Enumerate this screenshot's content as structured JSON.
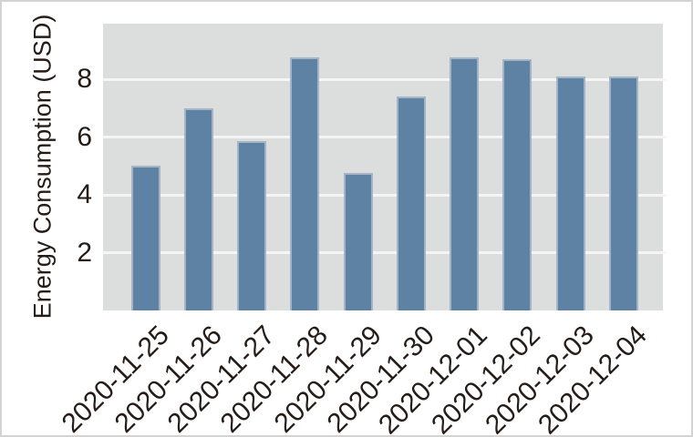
{
  "chart_data": {
    "type": "bar",
    "title": "",
    "xlabel": "",
    "ylabel": "Energy Consumption (USD)",
    "categories": [
      "2020-11-25",
      "2020-11-26",
      "2020-11-27",
      "2020-11-28",
      "2020-11-29",
      "2020-11-30",
      "2020-12-01",
      "2020-12-02",
      "2020-12-03",
      "2020-12-04"
    ],
    "values": [
      5.0,
      7.0,
      5.85,
      8.75,
      4.75,
      7.4,
      8.75,
      8.7,
      8.1,
      8.1
    ],
    "yticks": [
      2,
      4,
      6,
      8
    ],
    "ylim": [
      0,
      9.92
    ],
    "grid": "horizontal-white-lines",
    "legend": "none",
    "x_tick_rotation_deg": 45,
    "colors": {
      "bar_fill": "#5d82a4",
      "bar_edge": "#a3b4c6",
      "panel_background": "#dcdddd",
      "gridline": "#f4f5f4",
      "right_tick": "#f7f7f7",
      "text": "#261c17",
      "figure_background": "#ffffff",
      "figure_border": "#d3d3d3"
    }
  }
}
